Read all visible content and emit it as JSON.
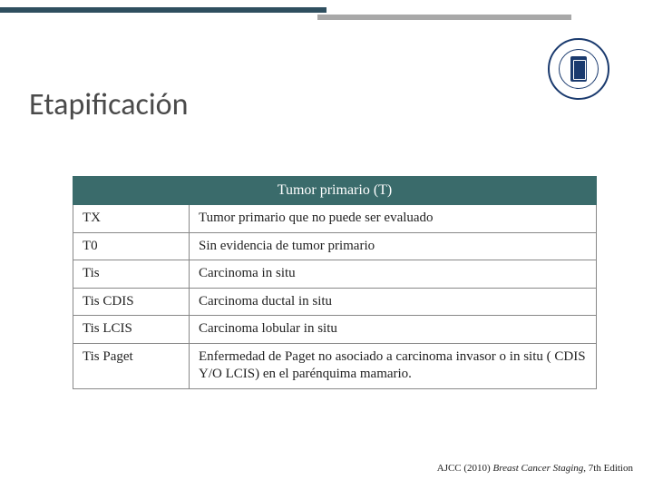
{
  "title": "Etapificación",
  "table": {
    "header": "Tumor primario (T)",
    "header_bg": "#3a6b6b",
    "header_color": "#ffffff",
    "border_color": "#888888",
    "rows": [
      {
        "code": "TX",
        "desc": "Tumor primario que no puede ser evaluado"
      },
      {
        "code": "T0",
        "desc": "Sin evidencia de tumor primario"
      },
      {
        "code": "Tis",
        "desc": "Carcinoma in situ"
      },
      {
        "code": "Tis CDIS",
        "desc": "Carcinoma ductal in situ"
      },
      {
        "code": "Tis LCIS",
        "desc": "Carcinoma lobular in situ"
      },
      {
        "code": "Tis Paget",
        "desc": "Enfermedad de Paget no asociado a carcinoma invasor o in situ ( CDIS Y/O LCIS) en el parénquima mamario."
      }
    ]
  },
  "citation": {
    "prefix": "AJCC (2010) ",
    "italic": "Breast Cancer Staging",
    "suffix": ", 7th Edition"
  },
  "decoration": {
    "bar_left_color": "#2f4f5f",
    "bar_right_color": "#a8a8a8"
  }
}
